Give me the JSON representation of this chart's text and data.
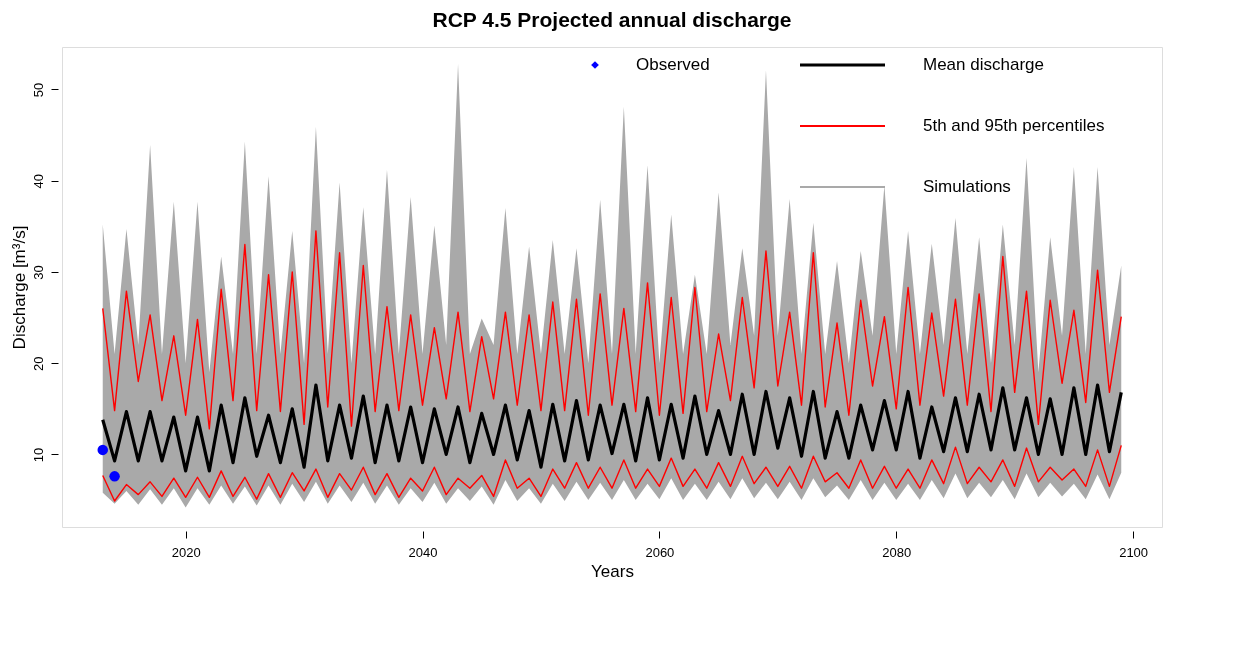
{
  "chart_data": {
    "type": "line",
    "title": "RCP 4.5 Projected annual discharge",
    "xlabel": "Years",
    "ylabel": "Discharge [m³/s]",
    "x": [
      2013,
      2014,
      2015,
      2016,
      2017,
      2018,
      2019,
      2020,
      2021,
      2022,
      2023,
      2024,
      2025,
      2026,
      2027,
      2028,
      2029,
      2030,
      2031,
      2032,
      2033,
      2034,
      2035,
      2036,
      2037,
      2038,
      2039,
      2040,
      2041,
      2042,
      2043,
      2044,
      2045,
      2046,
      2047,
      2048,
      2049,
      2050,
      2051,
      2052,
      2053,
      2054,
      2055,
      2056,
      2057,
      2058,
      2059,
      2060,
      2061,
      2062,
      2063,
      2064,
      2065,
      2066,
      2067,
      2068,
      2069,
      2070,
      2071,
      2072,
      2073,
      2074,
      2075,
      2076,
      2077,
      2078,
      2079,
      2080,
      2081,
      2082,
      2083,
      2084,
      2085,
      2086,
      2087,
      2088,
      2089,
      2090,
      2091,
      2092,
      2093,
      2094,
      2095,
      2096,
      2097,
      2098,
      2099
    ],
    "xlim": [
      2009.56,
      2102.44
    ],
    "xticks": [
      2020,
      2040,
      2060,
      2080,
      2100
    ],
    "ylim": [
      2.05,
      54.65
    ],
    "yticks": [
      10,
      20,
      30,
      40,
      50
    ],
    "grid": false,
    "legend": "top right",
    "line_style": "solid",
    "series": [
      {
        "name": "Observed",
        "type": "scatter",
        "marker": "circle",
        "color": "#0000ff",
        "x": [
          2013,
          2014
        ],
        "values": [
          10.5,
          7.6
        ]
      },
      {
        "name": "Mean discharge",
        "color": "#000000",
        "values": [
          13.8,
          9.3,
          14.7,
          9.3,
          14.7,
          9.3,
          14.1,
          8.2,
          14.1,
          8.2,
          15.4,
          9.1,
          16.2,
          9.8,
          14.3,
          9.1,
          15.0,
          8.6,
          17.6,
          9.3,
          15.4,
          9.6,
          16.4,
          9.1,
          15.4,
          9.3,
          15.2,
          9.1,
          15.0,
          10.0,
          15.2,
          9.1,
          14.5,
          10.0,
          15.4,
          9.4,
          14.8,
          8.6,
          15.5,
          9.3,
          15.9,
          9.4,
          15.4,
          10.1,
          15.5,
          9.3,
          16.2,
          9.4,
          15.5,
          9.6,
          16.4,
          10.0,
          14.8,
          10.0,
          16.6,
          10.0,
          16.9,
          10.7,
          16.2,
          9.8,
          16.9,
          9.6,
          14.7,
          9.6,
          15.4,
          10.5,
          15.9,
          10.5,
          16.9,
          9.6,
          15.2,
          10.3,
          16.2,
          10.3,
          16.6,
          10.5,
          17.3,
          10.5,
          16.2,
          10.0,
          16.1,
          10.0,
          17.3,
          10.0,
          17.6,
          10.3,
          16.8
        ]
      },
      {
        "name": "5th and 95th percentiles",
        "color": "#ff0000",
        "values": [
          26.0,
          14.8,
          27.9,
          18.0,
          25.3,
          15.9,
          23.0,
          14.3,
          24.8,
          12.8,
          28.1,
          15.9,
          33.0,
          14.8,
          29.7,
          14.7,
          30.0,
          13.3,
          34.5,
          15.2,
          32.1,
          13.1,
          30.7,
          14.7,
          26.2,
          14.8,
          25.3,
          15.4,
          23.9,
          16.1,
          25.6,
          14.7,
          22.9,
          16.1,
          25.6,
          15.4,
          25.3,
          14.8,
          26.7,
          14.8,
          27.0,
          14.3,
          27.6,
          15.4,
          26.0,
          14.7,
          28.8,
          14.3,
          27.2,
          14.5,
          28.3,
          14.7,
          23.2,
          15.9,
          27.2,
          17.3,
          32.3,
          17.5,
          25.6,
          15.4,
          32.1,
          15.2,
          24.4,
          14.3,
          26.9,
          17.5,
          25.1,
          15.0,
          28.3,
          15.4,
          25.5,
          16.4,
          27.0,
          15.4,
          27.6,
          14.7,
          31.7,
          16.8,
          27.9,
          13.3,
          26.9,
          17.8,
          25.8,
          15.7,
          30.2,
          16.8,
          25.1
        ]
      },
      {
        "color": "#ff0000",
        "values": [
          7.7,
          4.9,
          6.7,
          5.6,
          7.0,
          5.4,
          7.4,
          5.3,
          7.5,
          5.3,
          8.2,
          5.4,
          7.5,
          5.1,
          7.9,
          5.3,
          8.0,
          6.0,
          8.4,
          5.3,
          7.9,
          6.1,
          8.6,
          5.6,
          7.9,
          5.3,
          7.4,
          6.0,
          8.6,
          5.6,
          7.4,
          6.3,
          7.7,
          5.4,
          9.4,
          6.3,
          7.4,
          5.4,
          8.4,
          6.3,
          9.1,
          6.3,
          8.6,
          6.3,
          9.4,
          6.3,
          8.4,
          6.5,
          9.6,
          6.5,
          8.4,
          6.3,
          9.1,
          6.5,
          9.8,
          6.8,
          8.6,
          6.5,
          8.7,
          6.3,
          9.8,
          7.0,
          8.0,
          6.3,
          9.4,
          6.3,
          8.7,
          6.3,
          8.4,
          6.3,
          9.4,
          6.8,
          10.8,
          6.8,
          8.6,
          7.0,
          9.4,
          6.5,
          10.7,
          7.0,
          8.6,
          7.2,
          8.4,
          6.5,
          10.5,
          6.5,
          11.0
        ]
      },
      {
        "name": "Simulations",
        "color": "#a9a9a9",
        "values": [
          null,
          null,
          null,
          null,
          null,
          null,
          null,
          null,
          null,
          null,
          null,
          null,
          null,
          null,
          null,
          null,
          null,
          null,
          null,
          null,
          null,
          null,
          null,
          null,
          null,
          null,
          null,
          null,
          null,
          null,
          null,
          null,
          null,
          null,
          null,
          null,
          null,
          null,
          null,
          null,
          null,
          null,
          null,
          null,
          null,
          null,
          null,
          null,
          null,
          null,
          null,
          null,
          null,
          null,
          null,
          null,
          null,
          null,
          null,
          null,
          null,
          null,
          null,
          null,
          null,
          null,
          null,
          null,
          null,
          null,
          null,
          null,
          null,
          null,
          null,
          null,
          null,
          null,
          null,
          null,
          null,
          null,
          null,
          null,
          null,
          null,
          null
        ],
        "upper": [
          35.2,
          21,
          34.7,
          22,
          43.9,
          21,
          37.7,
          20,
          37.7,
          19,
          31.7,
          21,
          44.3,
          21,
          40.5,
          21,
          34.5,
          20,
          45.9,
          21,
          39.8,
          20,
          37.1,
          21,
          41.2,
          21,
          38.2,
          21,
          35.1,
          22,
          52.8,
          21,
          24.9,
          22,
          37.0,
          21,
          32.8,
          21,
          33.5,
          21,
          32.6,
          20,
          37.9,
          21,
          48.1,
          21,
          41.7,
          20,
          36.3,
          21,
          29.7,
          21,
          38.7,
          22,
          32.6,
          23,
          52.1,
          23,
          38.0,
          21,
          35.4,
          21,
          31.2,
          20,
          32.3,
          23,
          39.5,
          21,
          34.5,
          21,
          33.1,
          22,
          35.9,
          21,
          33.8,
          20,
          35.2,
          22,
          42.5,
          19,
          33.8,
          23,
          41.5,
          21,
          41.5,
          22,
          30.7
        ],
        "lower": [
          5.8,
          4.6,
          6.0,
          4.5,
          6.2,
          4.5,
          6.3,
          4.2,
          6.3,
          4.5,
          6.6,
          4.6,
          6.5,
          4.4,
          6.6,
          4.5,
          6.8,
          4.8,
          7.0,
          4.6,
          6.6,
          4.8,
          6.9,
          4.6,
          6.6,
          4.5,
          6.3,
          4.8,
          6.9,
          4.6,
          6.3,
          4.9,
          6.5,
          4.5,
          7.2,
          4.9,
          6.3,
          4.6,
          6.8,
          4.9,
          7.0,
          5.0,
          6.9,
          5.0,
          7.2,
          5.0,
          6.8,
          5.1,
          7.4,
          5.0,
          6.8,
          5.0,
          7.0,
          5.1,
          7.4,
          5.2,
          6.9,
          5.1,
          7.0,
          5.0,
          7.4,
          5.3,
          6.6,
          5.0,
          7.2,
          5.0,
          6.9,
          5.0,
          6.8,
          5.0,
          7.2,
          5.2,
          7.9,
          5.2,
          6.9,
          5.3,
          7.2,
          5.1,
          7.9,
          5.3,
          6.9,
          5.4,
          6.8,
          5.1,
          7.8,
          5.1,
          8.0
        ]
      }
    ]
  }
}
